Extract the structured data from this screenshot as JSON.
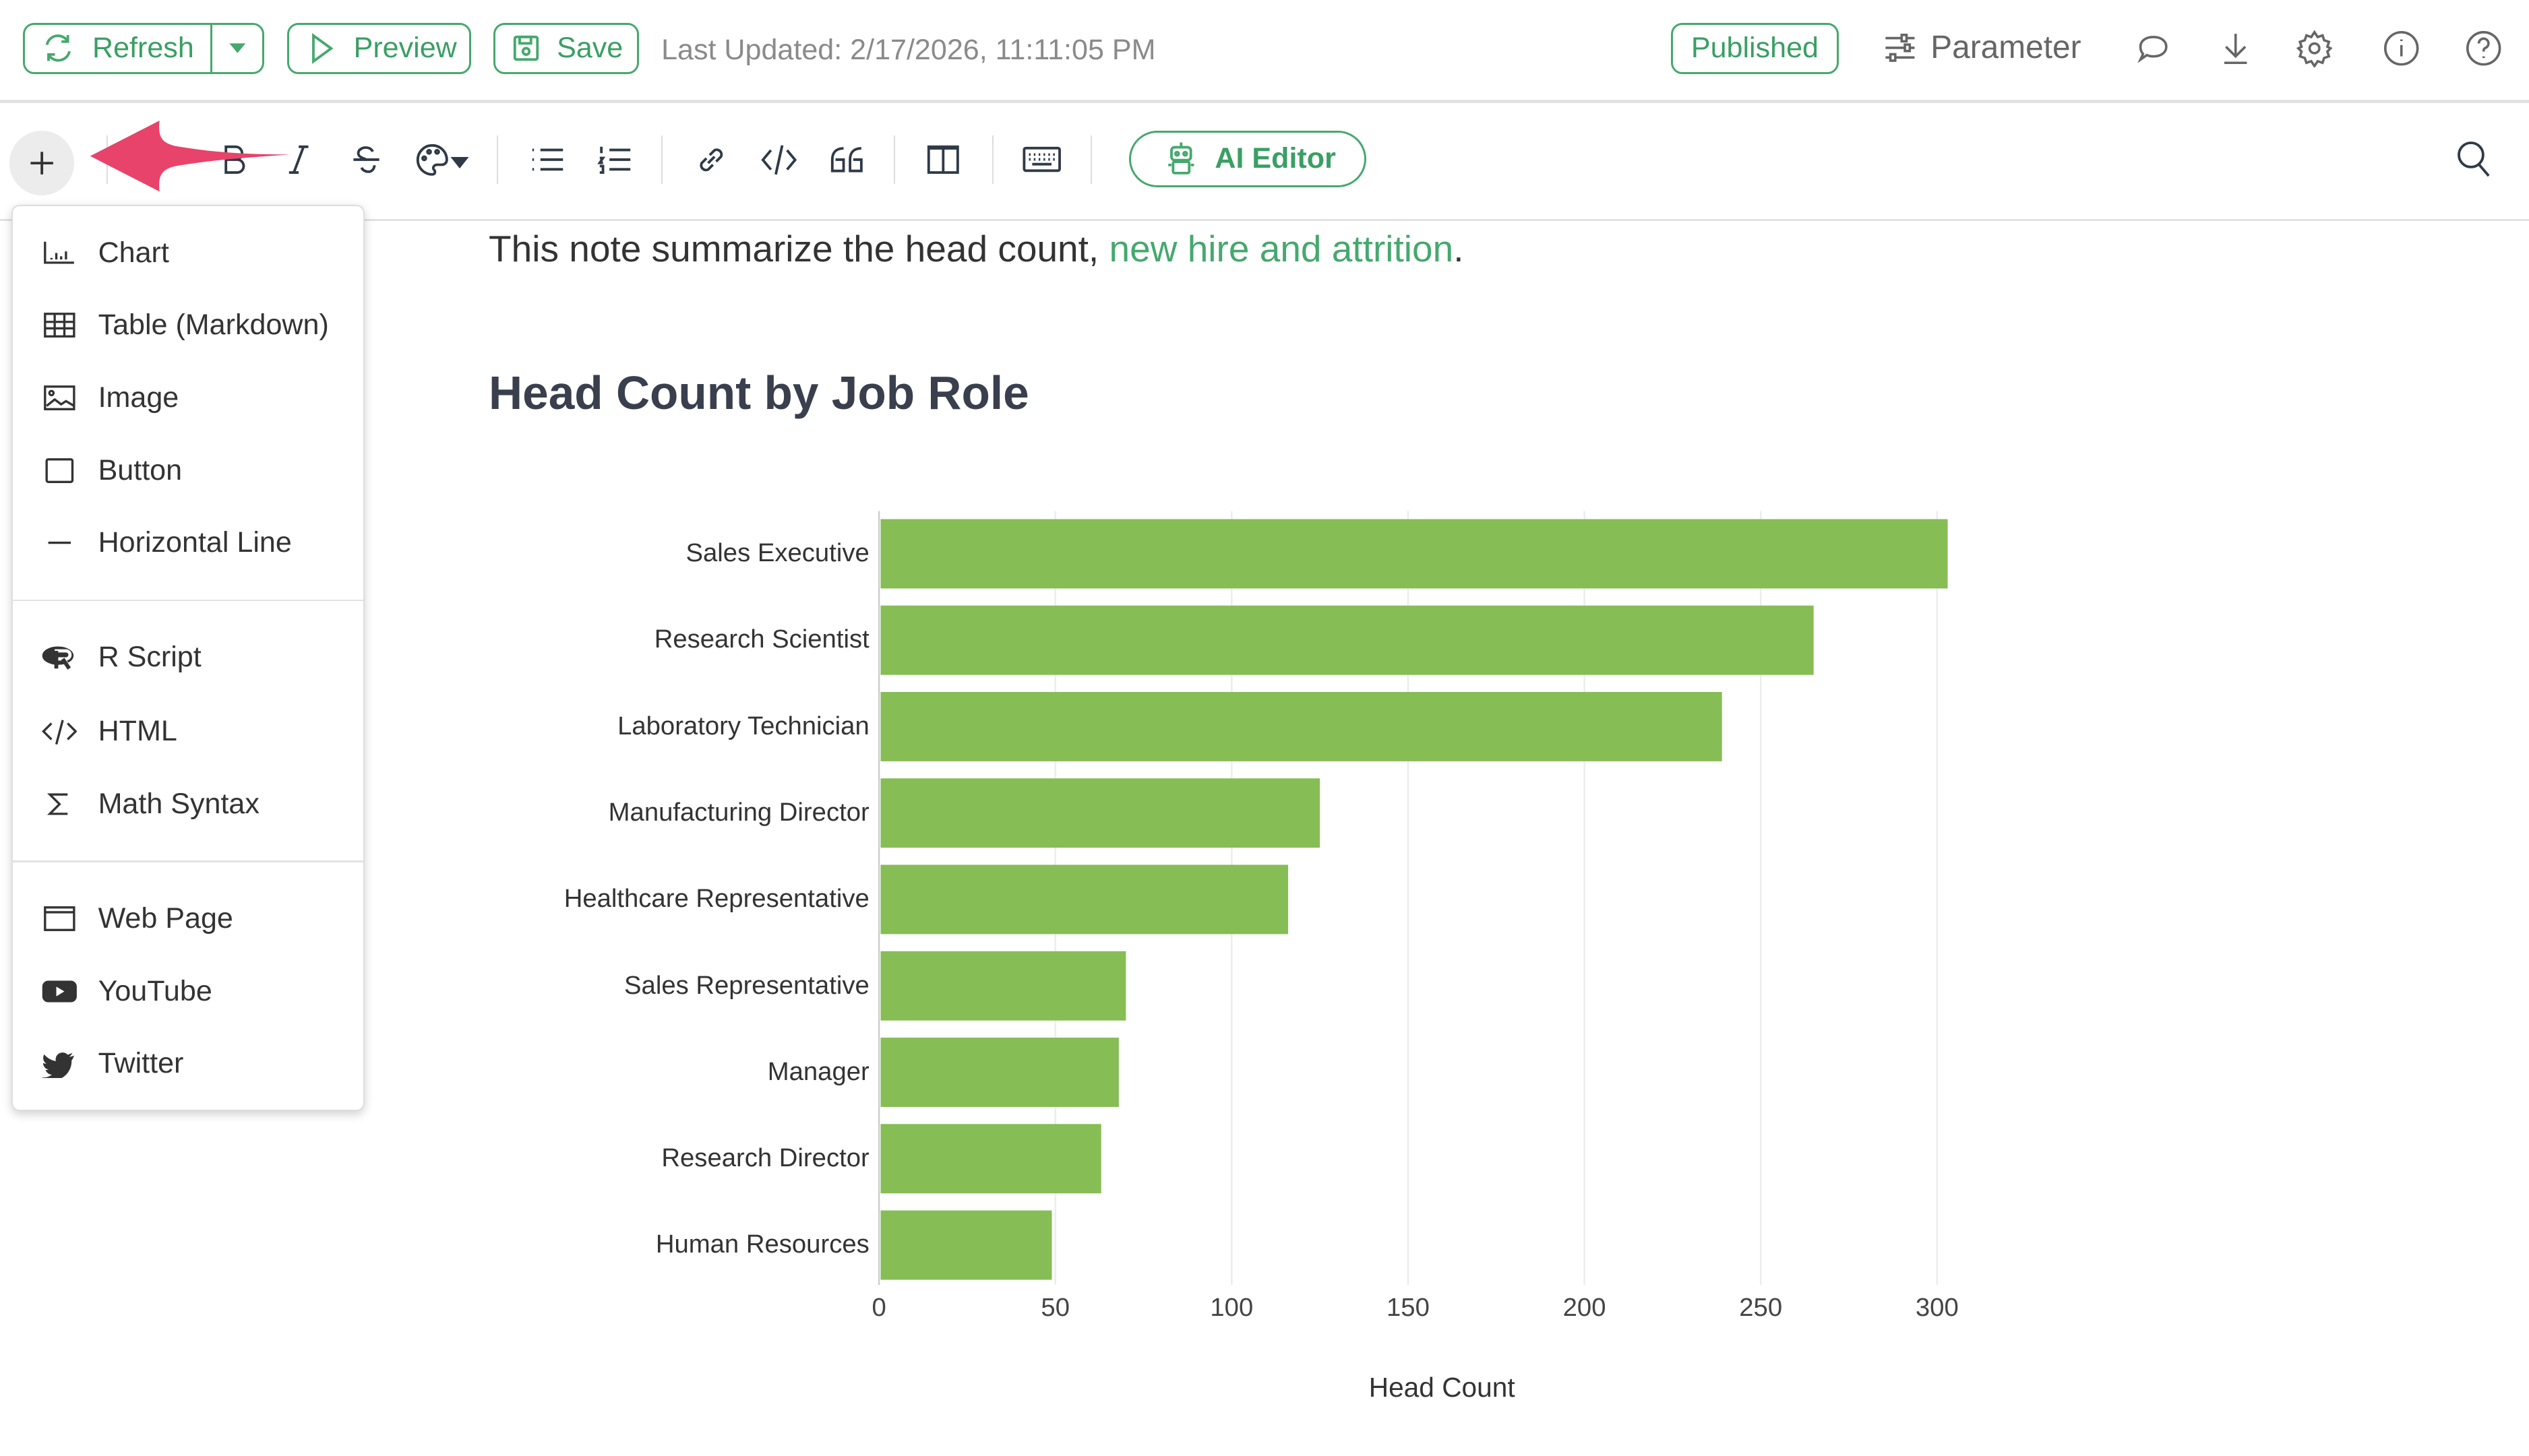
{
  "header": {
    "refresh_label": "Refresh",
    "preview_label": "Preview",
    "save_label": "Save",
    "last_updated": "Last Updated: 2/17/2026, 11:11:05 PM",
    "published_label": "Published",
    "parameter_label": "Parameter"
  },
  "toolbar": {
    "ai_editor_label": "AI Editor"
  },
  "insert_menu": {
    "items": [
      {
        "label": "Chart",
        "icon": "bar-chart-icon"
      },
      {
        "label": "Table (Markdown)",
        "icon": "table-icon"
      },
      {
        "label": "Image",
        "icon": "image-icon"
      },
      {
        "label": "Button",
        "icon": "button-icon"
      },
      {
        "label": "Horizontal Line",
        "icon": "horizontal-line-icon"
      },
      {
        "label": "R Script",
        "icon": "r-logo-icon"
      },
      {
        "label": "HTML",
        "icon": "code-icon"
      },
      {
        "label": "Math Syntax",
        "icon": "sigma-icon"
      },
      {
        "label": "Web Page",
        "icon": "browser-window-icon"
      },
      {
        "label": "YouTube",
        "icon": "youtube-icon"
      },
      {
        "label": "Twitter",
        "icon": "twitter-icon"
      }
    ]
  },
  "content": {
    "intro_text": "This note summarize the head count, ",
    "intro_link": "new hire and attrition",
    "intro_end": ".",
    "heading": "Head Count by Job Role"
  },
  "colors": {
    "accent": "#46a86e",
    "bar": "#86bd55",
    "arrow": "#e8436a"
  },
  "chart_data": {
    "type": "bar",
    "orientation": "horizontal",
    "categories": [
      "Sales Executive",
      "Research Scientist",
      "Laboratory Technician",
      "Manufacturing Director",
      "Healthcare Representative",
      "Sales Representative",
      "Manager",
      "Research Director",
      "Human Resources"
    ],
    "values": [
      303,
      265,
      239,
      125,
      116,
      70,
      68,
      63,
      49
    ],
    "xlabel": "Head Count",
    "ylabel": "",
    "xlim": [
      0,
      300
    ],
    "xticks": [
      0,
      50,
      100,
      150,
      200,
      250,
      300
    ],
    "grid": true
  }
}
